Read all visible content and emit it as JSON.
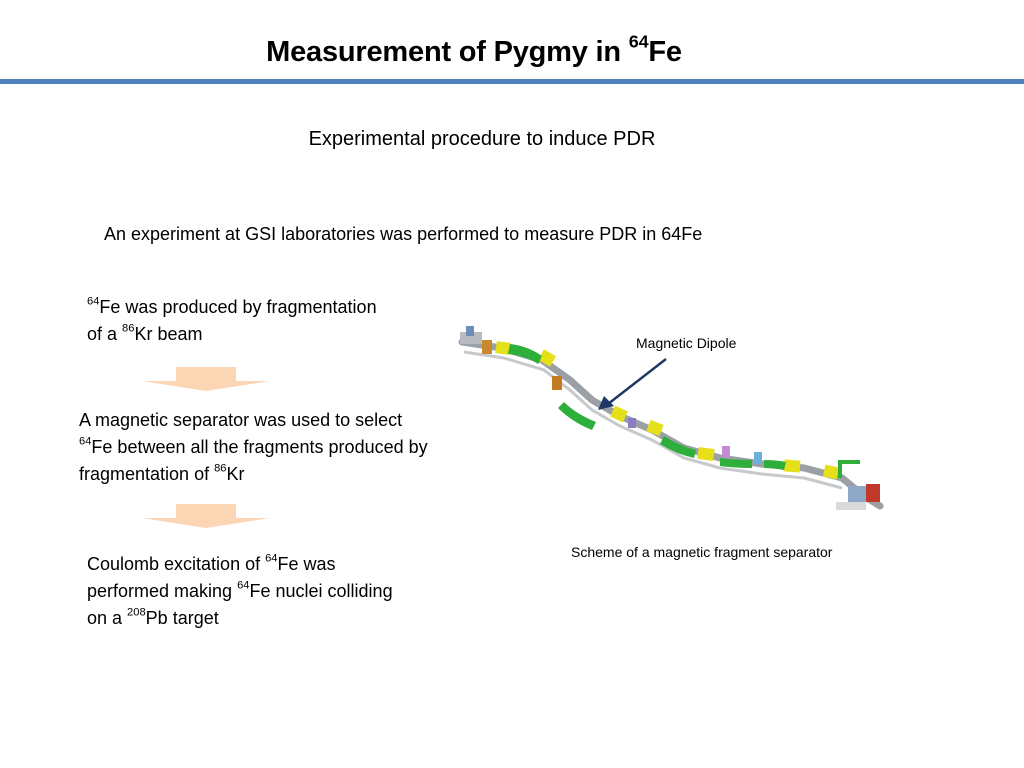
{
  "slide": {
    "title": {
      "text": "Measurement of Pygmy in ",
      "sup": "64",
      "after": "Fe"
    },
    "subtitle": "Experimental procedure to induce PDR",
    "intro": "An experiment at GSI laboratories was performed to measure PDR in 64Fe"
  },
  "steps": {
    "step1": {
      "sup1": "64",
      "text1": "Fe was produced by fragmentation of a ",
      "sup2": "86",
      "text2": "Kr beam"
    },
    "step2": {
      "text1": "A magnetic separator was used to select ",
      "sup1": "64",
      "text2": "Fe between all the fragments produced by fragmentation of ",
      "sup2": "86",
      "text3": "Kr"
    },
    "step3": {
      "text1": "Coulomb excitation of ",
      "sup1": "64",
      "text2": "Fe was performed making ",
      "sup2": "64",
      "text3": "Fe nuclei colliding on a ",
      "sup3": "208",
      "text4": "Pb target"
    }
  },
  "figure": {
    "dipole_label": "Magnetic Dipole",
    "caption": "Scheme of a magnetic fragment separator"
  },
  "colors": {
    "title_rule": "#4f81bd",
    "flow_arrow": "#fcd5b4",
    "pointer_arrow": "#1f3864",
    "dipole": "#2eae3a",
    "quadrupole": "#e6e01a",
    "beamline": "#9aa0a6"
  }
}
